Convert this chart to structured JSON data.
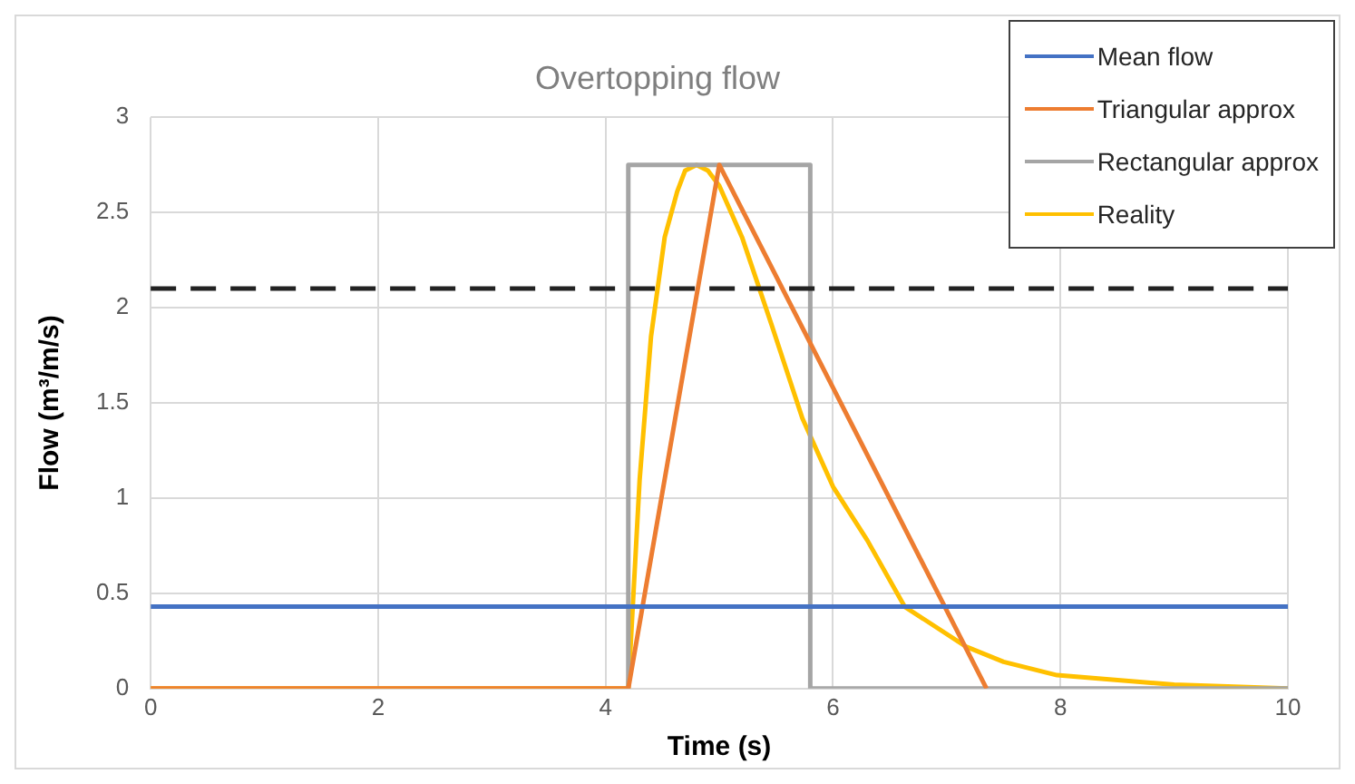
{
  "chart_data": {
    "type": "line",
    "title": "Overtopping flow",
    "xlabel": "Time (s)",
    "ylabel": "Flow (m³/m/s)",
    "xlim": [
      0,
      10
    ],
    "xticks": [
      0,
      2,
      4,
      6,
      8,
      10
    ],
    "ylim": [
      0,
      3
    ],
    "yticks": [
      0,
      0.5,
      1,
      1.5,
      2,
      2.5,
      3
    ],
    "grid": true,
    "legend": "top right",
    "marker": "none",
    "series": [
      {
        "name": "Mean flow",
        "color": "#4472c4",
        "x": [
          0,
          10
        ],
        "values": [
          0.43,
          0.43
        ]
      },
      {
        "name": "Triangular approx",
        "color": "#ed7d31",
        "x": [
          0,
          4.2,
          5.0,
          7.35
        ],
        "values": [
          0,
          0,
          2.75,
          0
        ]
      },
      {
        "name": "Rectangular approx",
        "color": "#a5a5a5",
        "x": [
          4.2,
          4.2,
          5.8,
          5.8,
          10
        ],
        "values": [
          0,
          2.75,
          2.75,
          0,
          0
        ]
      },
      {
        "name": "Reality",
        "color": "#ffc000",
        "x": [
          0,
          4.2,
          4.3,
          4.4,
          4.52,
          4.63,
          4.7,
          4.8,
          4.9,
          5.0,
          5.2,
          5.46,
          5.73,
          6.0,
          6.3,
          6.63,
          7.17,
          7.5,
          7.97,
          9.0,
          10
        ],
        "values": [
          0,
          0,
          1.1,
          1.85,
          2.37,
          2.61,
          2.72,
          2.75,
          2.72,
          2.64,
          2.37,
          1.91,
          1.42,
          1.06,
          0.78,
          0.43,
          0.22,
          0.14,
          0.07,
          0.02,
          0
        ]
      }
    ],
    "ref_lines": [
      {
        "axis": "y",
        "value": 2.1,
        "color": "#222222",
        "line_style": "dashed"
      }
    ]
  }
}
